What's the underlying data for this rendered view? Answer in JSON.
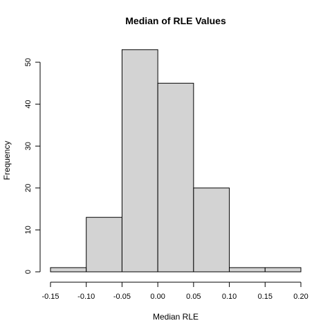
{
  "chart_data": {
    "type": "bar",
    "title": "Median of RLE Values",
    "xlabel": "Median RLE",
    "ylabel": "Frequency",
    "bins": [
      {
        "from": -0.15,
        "to": -0.1,
        "count": 1
      },
      {
        "from": -0.1,
        "to": -0.05,
        "count": 13
      },
      {
        "from": -0.05,
        "to": 0.0,
        "count": 53
      },
      {
        "from": 0.0,
        "to": 0.05,
        "count": 45
      },
      {
        "from": 0.05,
        "to": 0.1,
        "count": 20
      },
      {
        "from": 0.1,
        "to": 0.15,
        "count": 1
      },
      {
        "from": 0.15,
        "to": 0.2,
        "count": 1
      }
    ],
    "xlim": [
      -0.15,
      0.2
    ],
    "ylim": [
      0,
      55
    ],
    "x_ticks": [
      {
        "value": -0.15,
        "label": "-0.15"
      },
      {
        "value": -0.1,
        "label": "-0.10"
      },
      {
        "value": -0.05,
        "label": "-0.05"
      },
      {
        "value": 0.0,
        "label": "0.00"
      },
      {
        "value": 0.05,
        "label": "0.05"
      },
      {
        "value": 0.1,
        "label": "0.10"
      },
      {
        "value": 0.15,
        "label": "0.15"
      },
      {
        "value": 0.2,
        "label": "0.20"
      }
    ],
    "y_ticks": [
      {
        "value": 0,
        "label": "0"
      },
      {
        "value": 10,
        "label": "10"
      },
      {
        "value": 20,
        "label": "20"
      },
      {
        "value": 30,
        "label": "30"
      },
      {
        "value": 40,
        "label": "40"
      },
      {
        "value": 50,
        "label": "50"
      }
    ],
    "bar_color": "#d3d3d3",
    "grid": false
  }
}
